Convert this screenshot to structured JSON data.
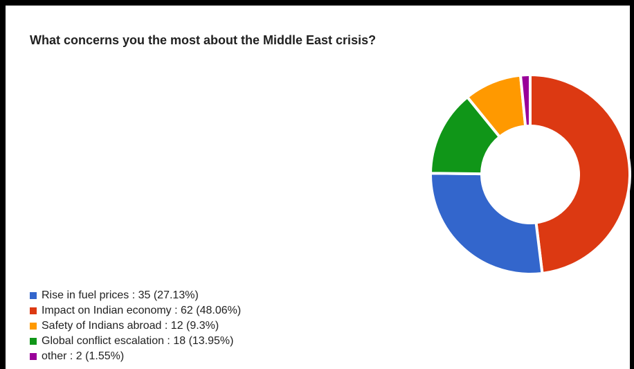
{
  "chart_data": {
    "type": "pie",
    "title": "What concerns you the most about the Middle East crisis?",
    "donut": true,
    "legend_position": "bottom-left",
    "slices": [
      {
        "label": "Rise in fuel prices : 35 (27.13%)",
        "category": "Rise in fuel prices",
        "value": 35,
        "percent": 27.13,
        "color": "#3366cc"
      },
      {
        "label": "Impact on Indian economy : 62 (48.06%)",
        "category": "Impact on Indian economy",
        "value": 62,
        "percent": 48.06,
        "color": "#dc3912"
      },
      {
        "label": "Safety of Indians abroad : 12 (9.3%)",
        "category": "Safety of Indians abroad",
        "value": 12,
        "percent": 9.3,
        "color": "#ff9900"
      },
      {
        "label": "Global conflict escalation : 18 (13.95%)",
        "category": "Global conflict escalation",
        "value": 18,
        "percent": 13.95,
        "color": "#109618"
      },
      {
        "label": "other : 2 (1.55%)",
        "category": "other",
        "value": 2,
        "percent": 1.55,
        "color": "#990099"
      }
    ],
    "draw_order": [
      "Impact on Indian economy",
      "Rise in fuel prices",
      "Global conflict escalation",
      "Safety of Indians abroad",
      "other"
    ]
  }
}
